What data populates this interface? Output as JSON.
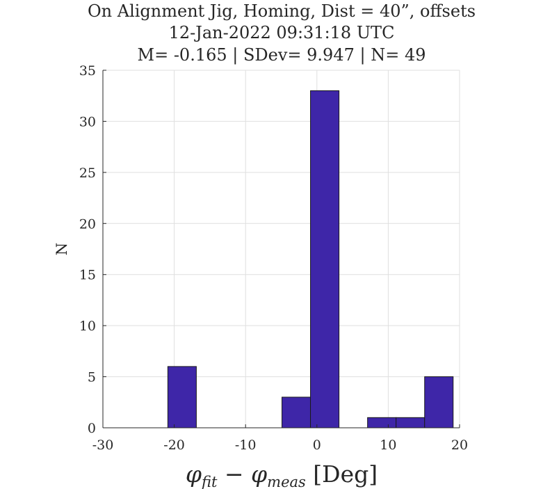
{
  "chart_data": {
    "type": "bar",
    "title_lines": [
      "On Alignment Jig, Homing, Dist = 40”, offsets",
      "12-Jan-2022 09:31:18 UTC",
      "M= -0.165 | SDev= 9.947 | N= 49"
    ],
    "xlabel": {
      "phi": "φ",
      "sub_fit": "fit",
      "minus": " − ",
      "sub_meas": "meas",
      "unit": " [Deg]"
    },
    "ylabel": "N",
    "xlim": [
      -30,
      20
    ],
    "ylim": [
      0,
      35
    ],
    "xticks": [
      "-30",
      "-20",
      "-10",
      "0",
      "10",
      "20"
    ],
    "yticks": [
      "0",
      "5",
      "10",
      "15",
      "20",
      "25",
      "30",
      "35"
    ],
    "grid": true,
    "bins": [
      {
        "x0": -20.9,
        "x1": -16.9,
        "value": 6
      },
      {
        "x0": -16.9,
        "x1": -12.9,
        "value": 0
      },
      {
        "x0": -12.9,
        "x1": -8.9,
        "value": 0
      },
      {
        "x0": -8.9,
        "x1": -4.9,
        "value": 0
      },
      {
        "x0": -4.9,
        "x1": -0.9,
        "value": 3
      },
      {
        "x0": -0.9,
        "x1": 3.1,
        "value": 33
      },
      {
        "x0": 3.1,
        "x1": 7.1,
        "value": 0
      },
      {
        "x0": 7.1,
        "x1": 11.1,
        "value": 1
      },
      {
        "x0": 11.1,
        "x1": 15.1,
        "value": 1
      },
      {
        "x0": 15.1,
        "x1": 19.1,
        "value": 5
      }
    ],
    "colors": {
      "bar_fill": "#3e26a8",
      "bar_edge": "#1a1a1a",
      "grid": "#dfdfdf",
      "axis": "#262626"
    }
  }
}
